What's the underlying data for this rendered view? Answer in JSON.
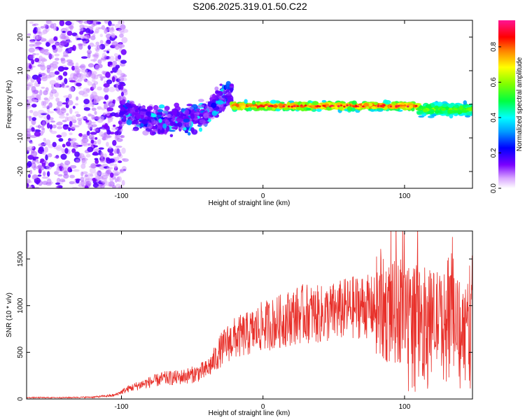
{
  "title": "S206.2025.319.01.50.C22",
  "chart_data": [
    {
      "type": "heatmap",
      "name": "spectrogram",
      "xlabel": "Height of straight line (km)",
      "ylabel": "Frequency (Hz)",
      "xlim": [
        -167,
        148
      ],
      "ylim": [
        -25,
        25
      ],
      "xticks": [
        -100,
        0,
        100
      ],
      "xtick_labels": [
        "-100",
        "0",
        "100"
      ],
      "yticks": [
        -20,
        -10,
        0,
        10,
        20
      ],
      "ytick_labels": [
        "-20",
        "-10",
        "0",
        "10",
        "20"
      ],
      "colorbar": {
        "label": "Normalized spectral amplitude",
        "range": [
          0,
          0.95
        ],
        "ticks": [
          0.0,
          0.2,
          0.4,
          0.6,
          0.8
        ],
        "tick_labels": [
          "0.0",
          "0.2",
          "0.4",
          "0.6",
          "0.8"
        ]
      },
      "regions": [
        {
          "x_range": [
            -167,
            -100
          ],
          "freq_center": 0,
          "freq_spread": 25,
          "amplitude": 0.15,
          "description": "scattered noise"
        },
        {
          "x_range": [
            -100,
            -22
          ],
          "freq_center": -2,
          "freq_spread": 5,
          "amplitude": 0.25,
          "description": "turbulent signal"
        },
        {
          "x_range": [
            -22,
            148
          ],
          "freq_center": -0.5,
          "freq_spread": 1.5,
          "amplitude": 0.8,
          "description": "clear carrier"
        }
      ]
    },
    {
      "type": "line",
      "name": "snr",
      "xlabel": "Height of straight line (km)",
      "ylabel": "SNR (10 * v/v)",
      "xlim": [
        -167,
        148
      ],
      "ylim": [
        0,
        1800
      ],
      "xticks": [
        -100,
        0,
        100
      ],
      "xtick_labels": [
        "-100",
        "0",
        "100"
      ],
      "yticks": [
        0,
        500,
        1000,
        1500
      ],
      "ytick_labels": [
        "0",
        "500",
        "1000",
        "1500"
      ],
      "color": "#e8302a",
      "x": [
        -167,
        -140,
        -120,
        -105,
        -95,
        -85,
        -70,
        -60,
        -50,
        -40,
        -35,
        -30,
        -25,
        -20,
        -10,
        0,
        10,
        20,
        30,
        40,
        50,
        60,
        70,
        80,
        90,
        100,
        110,
        120,
        130,
        140,
        148
      ],
      "y": [
        15,
        15,
        20,
        40,
        110,
        160,
        220,
        230,
        260,
        310,
        400,
        520,
        600,
        650,
        700,
        780,
        820,
        880,
        920,
        900,
        930,
        970,
        1000,
        970,
        920,
        940,
        900,
        870,
        850,
        800,
        760
      ]
    }
  ]
}
